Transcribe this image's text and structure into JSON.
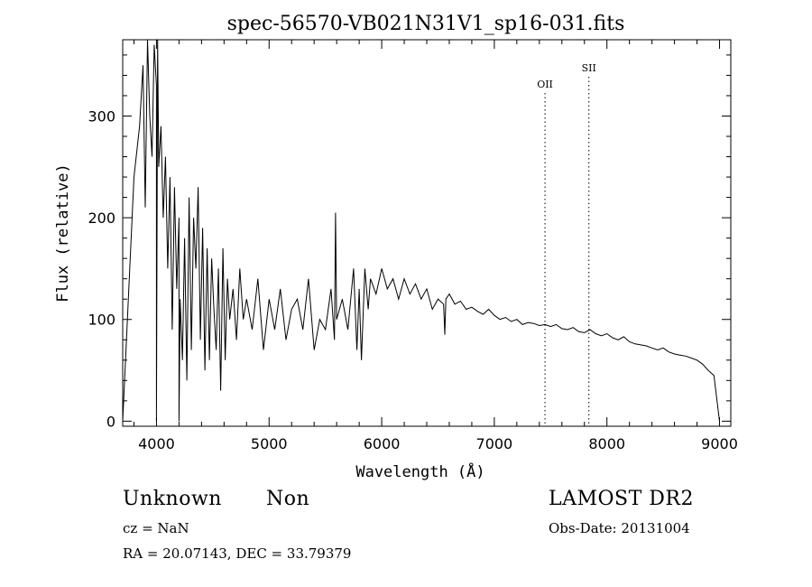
{
  "chart_data": {
    "type": "line",
    "title": "spec-56570-VB021N31V1_sp16-031.fits",
    "xlabel": "Wavelength (Å)",
    "ylabel": "Flux (relative)",
    "xlim": [
      3700,
      9100
    ],
    "ylim": [
      -5,
      375
    ],
    "xticks": [
      4000,
      5000,
      6000,
      7000,
      8000,
      9000
    ],
    "xtick_labels": [
      "4000",
      "5000",
      "6000",
      "7000",
      "8000",
      "9000"
    ],
    "yticks": [
      0,
      100,
      200,
      300
    ],
    "ytick_labels": [
      "0",
      "100",
      "200",
      "300"
    ],
    "grid": false,
    "lines": [
      {
        "name": "OII",
        "x": 7450
      },
      {
        "name": "SII",
        "x": 7840
      }
    ],
    "series": [
      {
        "name": "flux",
        "x": [
          3700,
          3800,
          3850,
          3880,
          3900,
          3920,
          3940,
          3960,
          3980,
          4000,
          4000,
          4010,
          4020,
          4040,
          4060,
          4080,
          4100,
          4120,
          4140,
          4160,
          4180,
          4200,
          4200,
          4210,
          4230,
          4250,
          4270,
          4290,
          4310,
          4330,
          4350,
          4370,
          4390,
          4410,
          4430,
          4450,
          4470,
          4490,
          4510,
          4530,
          4550,
          4570,
          4590,
          4610,
          4630,
          4650,
          4680,
          4710,
          4740,
          4770,
          4800,
          4850,
          4900,
          4950,
          5000,
          5050,
          5100,
          5150,
          5200,
          5250,
          5300,
          5350,
          5400,
          5450,
          5500,
          5550,
          5580,
          5590,
          5600,
          5650,
          5700,
          5750,
          5780,
          5800,
          5820,
          5850,
          5880,
          5900,
          5950,
          6000,
          6050,
          6100,
          6150,
          6200,
          6250,
          6300,
          6350,
          6400,
          6450,
          6500,
          6550,
          6560,
          6570,
          6600,
          6650,
          6700,
          6750,
          6800,
          6850,
          6900,
          6950,
          7000,
          7050,
          7100,
          7150,
          7200,
          7250,
          7300,
          7350,
          7400,
          7450,
          7500,
          7550,
          7600,
          7650,
          7700,
          7750,
          7800,
          7850,
          7900,
          7950,
          8000,
          8050,
          8100,
          8150,
          8200,
          8250,
          8300,
          8350,
          8400,
          8450,
          8500,
          8550,
          8600,
          8650,
          8700,
          8750,
          8800,
          8850,
          8900,
          8950,
          9000
        ],
        "y": [
          0,
          240,
          290,
          350,
          210,
          375,
          300,
          260,
          370,
          330,
          0,
          375,
          250,
          290,
          200,
          260,
          150,
          240,
          90,
          230,
          130,
          200,
          0,
          120,
          60,
          180,
          40,
          220,
          70,
          200,
          150,
          230,
          80,
          190,
          50,
          170,
          60,
          160,
          110,
          70,
          150,
          30,
          170,
          60,
          140,
          100,
          130,
          80,
          150,
          100,
          120,
          90,
          140,
          70,
          120,
          90,
          130,
          80,
          110,
          120,
          90,
          140,
          70,
          100,
          90,
          130,
          80,
          205,
          100,
          120,
          90,
          150,
          70,
          130,
          60,
          150,
          110,
          140,
          125,
          150,
          130,
          140,
          120,
          140,
          125,
          135,
          120,
          130,
          110,
          120,
          115,
          85,
          120,
          125,
          115,
          118,
          110,
          112,
          108,
          105,
          110,
          104,
          100,
          102,
          98,
          100,
          95,
          97,
          96,
          94,
          95,
          93,
          95,
          91,
          90,
          92,
          88,
          87,
          90,
          86,
          84,
          86,
          82,
          80,
          83,
          78,
          76,
          75,
          74,
          72,
          70,
          72,
          68,
          66,
          65,
          64,
          62,
          60,
          56,
          50,
          45,
          0
        ]
      }
    ]
  },
  "info": {
    "class": "Unknown",
    "subclass": "Non",
    "survey": "LAMOST DR2",
    "cz": "cz = NaN",
    "obs_date": "Obs-Date: 20131004",
    "coords": "RA =  20.07143, DEC =  33.79379"
  }
}
